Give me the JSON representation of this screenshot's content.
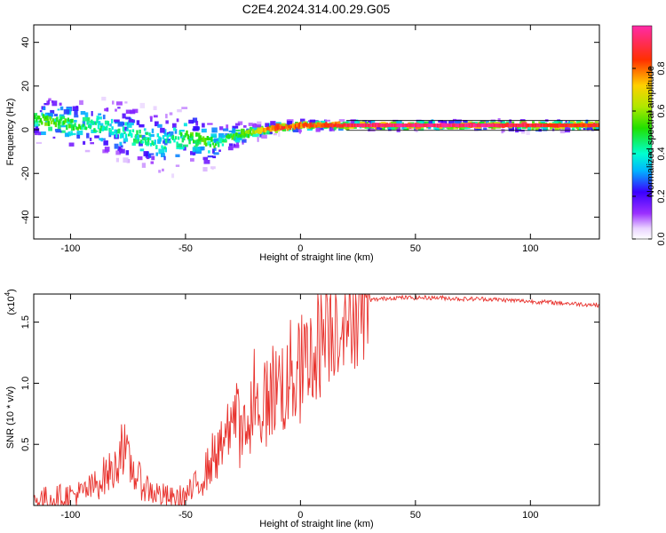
{
  "title": "C2E4.2024.314.00.29.G05",
  "chart_data": [
    {
      "type": "heatmap",
      "xlabel": "Height of straight line (km)",
      "ylabel": "Frequency (Hz)",
      "xlim": [
        -116,
        130
      ],
      "ylim": [
        -50,
        48
      ],
      "xticks": [
        -100,
        -50,
        0,
        50,
        100
      ],
      "yticks": [
        -40,
        -20,
        0,
        20,
        40
      ],
      "colorbar": {
        "label": "Normalized spectral amplitude",
        "range": [
          0.0,
          1.0
        ],
        "ticks": [
          0.0,
          0.2,
          0.4,
          0.6,
          0.8
        ],
        "tick_labels": [
          "0.0",
          "0.2",
          "0.4",
          "0.6",
          "0.8"
        ],
        "colormap": "rainbow (white-violet-blue-cyan-green-yellow-red-magenta)"
      },
      "ridge": {
        "description": "dominant frequency band versus height",
        "x": [
          -116,
          -110,
          -100,
          -90,
          -80,
          -70,
          -60,
          -50,
          -40,
          -35,
          -30,
          -25,
          -20,
          -15,
          -10,
          -5,
          0,
          10,
          20,
          40,
          60,
          80,
          100,
          130
        ],
        "y": [
          5,
          4,
          3,
          2,
          0,
          -3,
          -6,
          -3,
          -6,
          -6,
          -3,
          -2,
          -1,
          0,
          1,
          1,
          2,
          2,
          2,
          2,
          2,
          2,
          2,
          2
        ],
        "amplitude": [
          0.5,
          0.55,
          0.5,
          0.45,
          0.4,
          0.45,
          0.4,
          0.5,
          0.55,
          0.45,
          0.5,
          0.55,
          0.6,
          0.75,
          0.85,
          0.8,
          0.8,
          0.85,
          0.9,
          0.95,
          0.95,
          0.95,
          0.9,
          0.85
        ],
        "spread": [
          8,
          8,
          9,
          10,
          11,
          11,
          12,
          10,
          9,
          7,
          5,
          4,
          3,
          2,
          2,
          2,
          2,
          1.5,
          1.5,
          1.5,
          1.5,
          1.5,
          2,
          1.5
        ]
      },
      "grid": false
    },
    {
      "type": "line",
      "xlabel": "Height of straight line (km)",
      "ylabel": "SNR (10 * v/v)",
      "y_multiplier_label": "(x10",
      "y_multiplier_exp": "4",
      "xlim": [
        -116,
        130
      ],
      "ylim": [
        0,
        1.73
      ],
      "xticks": [
        -100,
        -50,
        0,
        50,
        100
      ],
      "yticks": [
        0.5,
        1.0,
        1.5
      ],
      "ytick_labels": [
        "0.5",
        "1.0",
        "1.5"
      ],
      "color": "#e8322d",
      "series": [
        {
          "x": [
            -116,
            -105,
            -95,
            -90,
            -85,
            -80,
            -78,
            -75,
            -70,
            -65,
            -60,
            -55,
            -50,
            -47,
            -44,
            -41,
            -38,
            -35,
            -32,
            -30,
            -28,
            -26,
            -24,
            -22,
            -20,
            -18,
            -16,
            -14,
            -12,
            -10,
            -8,
            -6,
            -4,
            -2,
            0,
            2,
            4,
            6,
            8,
            10,
            12,
            14,
            16,
            18,
            20,
            22,
            24,
            26,
            28,
            30,
            35,
            40,
            50,
            60,
            70,
            80,
            90,
            100,
            110,
            120,
            130
          ],
          "y": [
            0.05,
            0.07,
            0.1,
            0.15,
            0.25,
            0.3,
            0.55,
            0.35,
            0.2,
            0.12,
            0.08,
            0.05,
            0.08,
            0.12,
            0.2,
            0.28,
            0.4,
            0.45,
            0.5,
            0.7,
            0.75,
            0.55,
            0.6,
            0.65,
            0.75,
            0.8,
            0.8,
            0.9,
            0.95,
            0.98,
            1.0,
            0.95,
            1.1,
            1.05,
            1.1,
            1.15,
            1.2,
            1.25,
            1.35,
            1.4,
            1.45,
            1.5,
            1.55,
            1.5,
            1.6,
            1.62,
            1.6,
            1.65,
            1.67,
            1.68,
            1.69,
            1.7,
            1.7,
            1.7,
            1.69,
            1.69,
            1.68,
            1.67,
            1.66,
            1.65,
            1.64
          ]
        }
      ],
      "grid": false
    }
  ]
}
